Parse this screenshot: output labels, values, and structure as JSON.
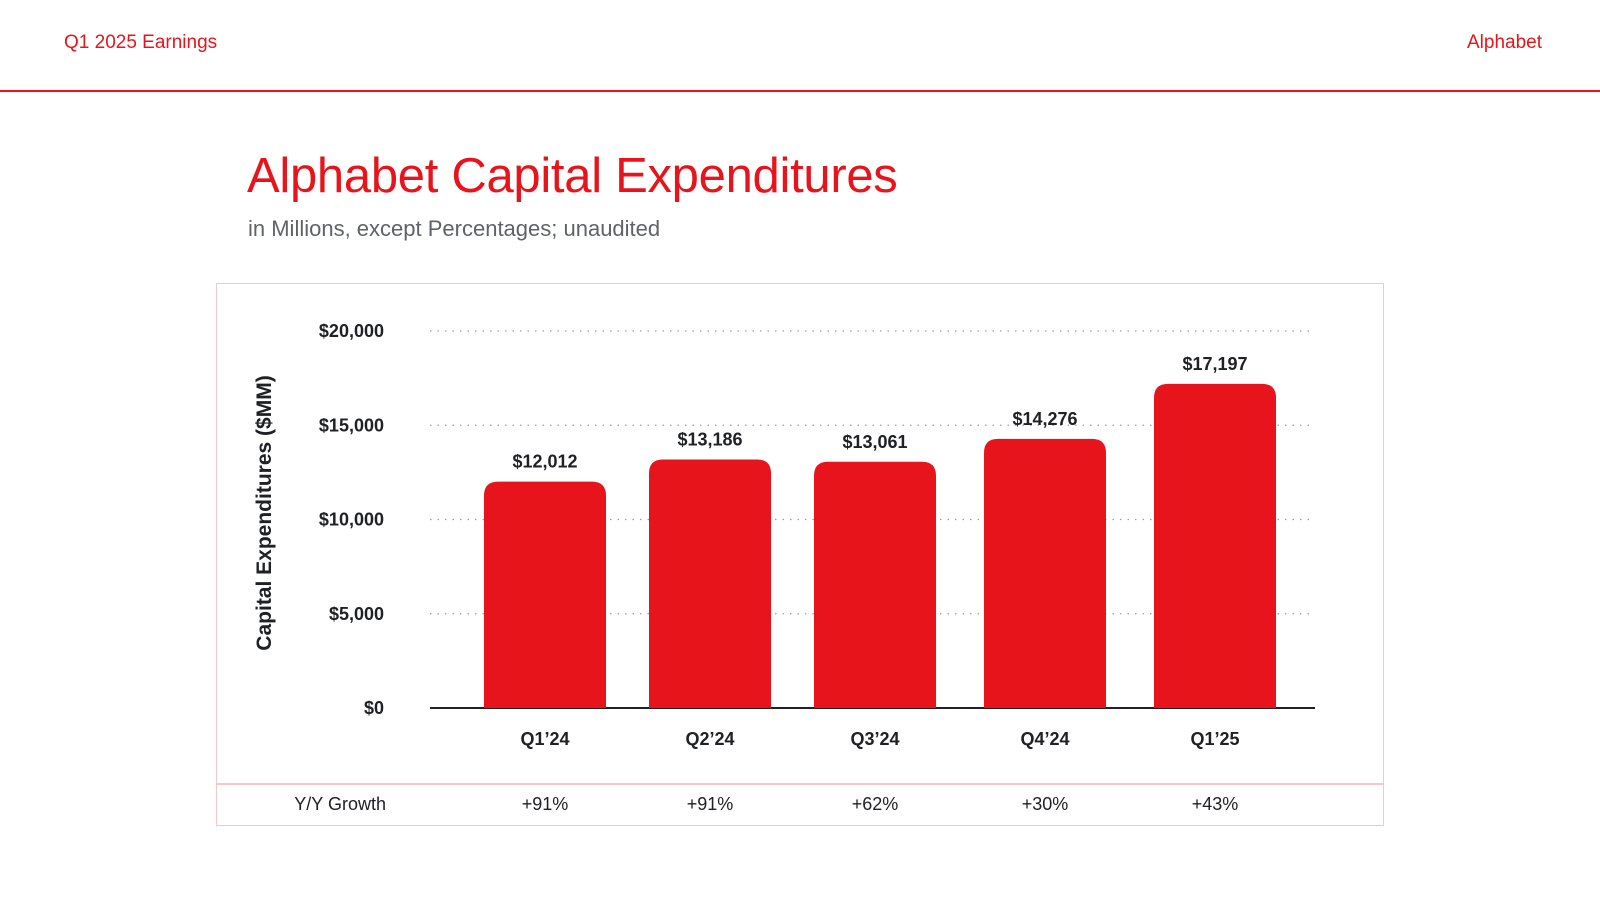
{
  "header": {
    "left_label": "Q1 2025 Earnings",
    "brand": "Alphabet"
  },
  "slide": {
    "title": "Alphabet Capital Expenditures",
    "subtitle": "in Millions, except Percentages; unaudited"
  },
  "colors": {
    "accent": "#e8141c",
    "frame": "#f6c7c9",
    "text": "#202124",
    "subtle": "#5f6368"
  },
  "chart_data": {
    "type": "bar",
    "title": "Alphabet Capital Expenditures",
    "ylabel": "Capital Expenditures ($MM)",
    "xlabel": "",
    "ylim": [
      0,
      20000
    ],
    "yticks": [
      0,
      5000,
      10000,
      15000,
      20000
    ],
    "ytick_labels": [
      "$0",
      "$5,000",
      "$10,000",
      "$15,000",
      "$20,000"
    ],
    "grid": "horizontal dotted",
    "categories": [
      "Q1’24",
      "Q2’24",
      "Q3’24",
      "Q4’24",
      "Q1’25"
    ],
    "values": [
      12012,
      13186,
      13061,
      14276,
      17197
    ],
    "value_labels": [
      "$12,012",
      "$13,186",
      "$13,061",
      "$14,276",
      "$17,197"
    ]
  },
  "growth": {
    "label": "Y/Y Growth",
    "values": [
      "+91%",
      "+91%",
      "+62%",
      "+30%",
      "+43%"
    ]
  }
}
